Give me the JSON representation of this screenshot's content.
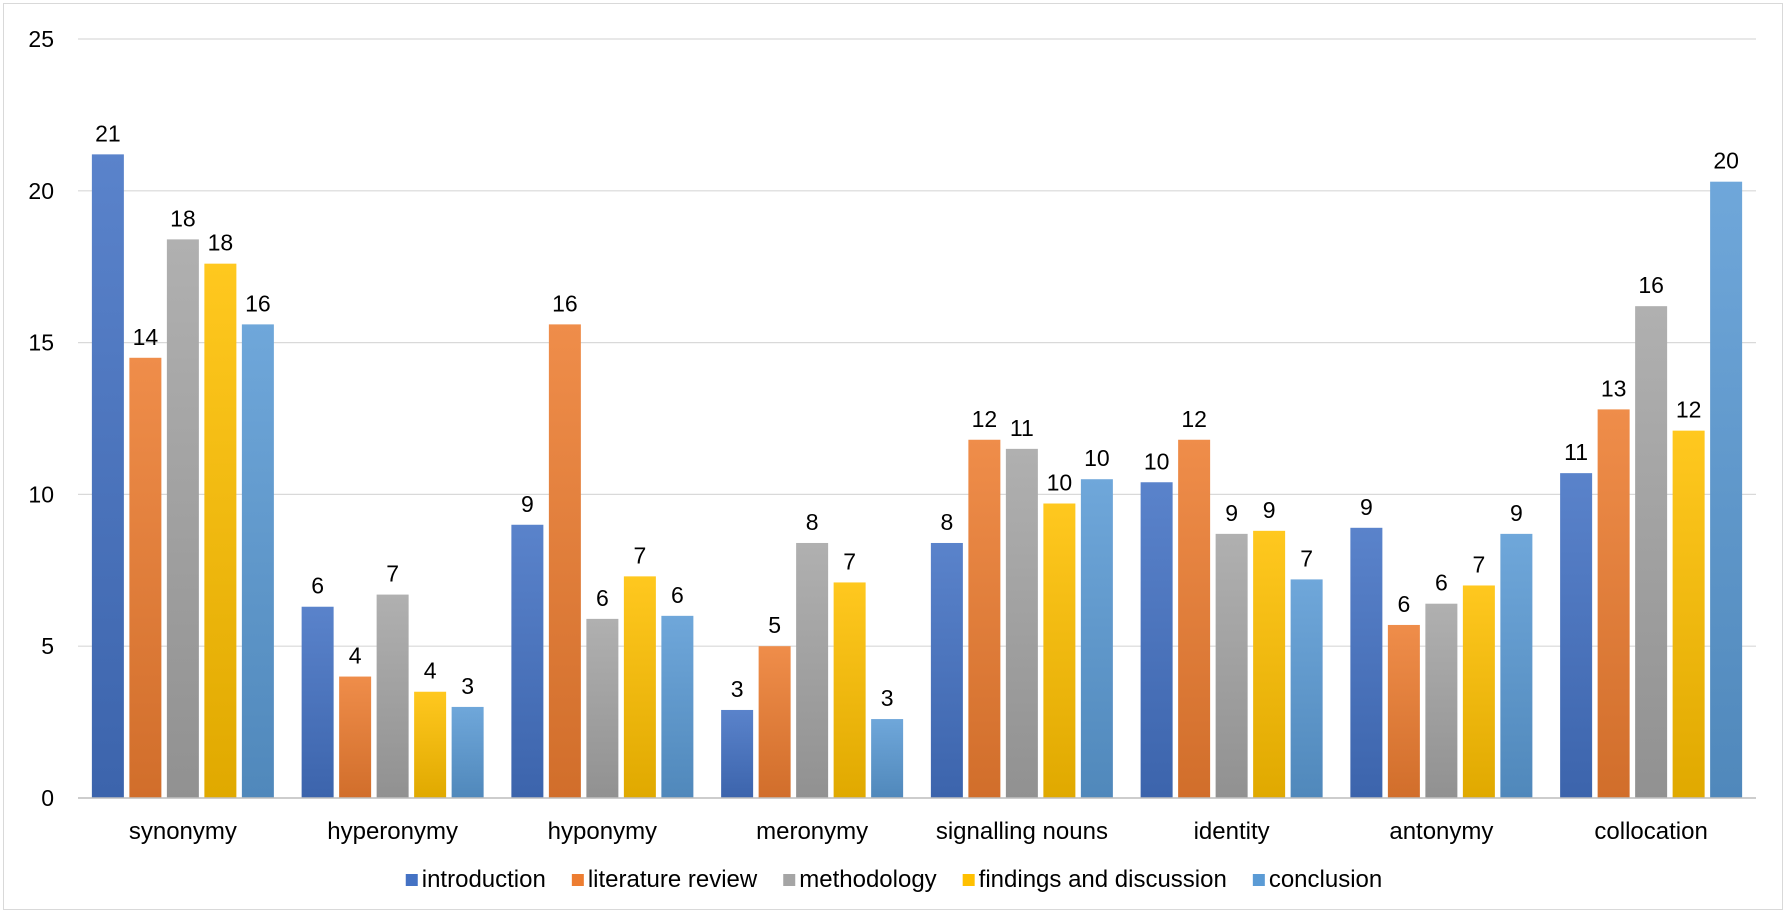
{
  "chart_data": {
    "type": "bar",
    "categories": [
      "synonymy",
      "hyperonymy",
      "hyponymy",
      "meronymy",
      "signalling nouns",
      "identity",
      "antonymy",
      "collocation"
    ],
    "series": [
      {
        "name": "introduction",
        "color": "#4472c4",
        "values": [
          21.2,
          6.3,
          9.0,
          2.9,
          8.4,
          10.4,
          8.9,
          10.7
        ],
        "labels": [
          "21",
          "6",
          "9",
          "3",
          "8",
          "10",
          "9",
          "11"
        ]
      },
      {
        "name": "literature review",
        "color": "#ed7d31",
        "values": [
          14.5,
          4.0,
          15.6,
          5.0,
          11.8,
          11.8,
          5.7,
          12.8
        ],
        "labels": [
          "14",
          "4",
          "16",
          "5",
          "12",
          "12",
          "6",
          "13"
        ]
      },
      {
        "name": "methodology",
        "color": "#a5a5a5",
        "values": [
          18.4,
          6.7,
          5.9,
          8.4,
          11.5,
          8.7,
          6.4,
          16.2
        ],
        "labels": [
          "18",
          "7",
          "6",
          "8",
          "11",
          "9",
          "6",
          "16"
        ]
      },
      {
        "name": "findings and discussion",
        "color": "#ffc000",
        "values": [
          17.6,
          3.5,
          7.3,
          7.1,
          9.7,
          8.8,
          7.0,
          12.1
        ],
        "labels": [
          "18",
          "4",
          "7",
          "7",
          "10",
          "9",
          "7",
          "12"
        ]
      },
      {
        "name": "conclusion",
        "color": "#5b9bd5",
        "values": [
          15.6,
          3.0,
          6.0,
          2.6,
          10.5,
          7.2,
          8.7,
          20.3
        ],
        "labels": [
          "16",
          "3",
          "6",
          "3",
          "10",
          "7",
          "9",
          "20"
        ]
      }
    ],
    "yticks": [
      "0",
      "5",
      "10",
      "15",
      "20",
      "25"
    ],
    "ylim": [
      0,
      25
    ],
    "grid": true,
    "legend_position": "bottom"
  }
}
